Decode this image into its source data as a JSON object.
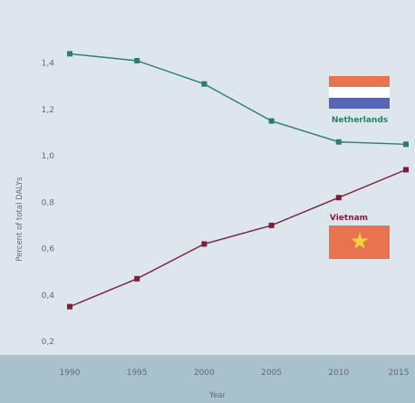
{
  "chart_data": {
    "type": "line",
    "title": "",
    "xlabel": "Year",
    "ylabel": "Percent of total DALYs",
    "x": [
      1990,
      1995,
      2000,
      2005,
      2010,
      2015
    ],
    "ylim": [
      0.2,
      1.5
    ],
    "yticks": [
      "0,2",
      "0,4",
      "0,6",
      "0,8",
      "1,0",
      "1,2",
      "1,4"
    ],
    "xticks": [
      "1990",
      "1995",
      "2000",
      "2005",
      "2010",
      "2015"
    ],
    "grid": false,
    "series": [
      {
        "name": "Netherlands",
        "values": [
          1.44,
          1.41,
          1.31,
          1.15,
          1.06,
          1.05
        ],
        "color": "#2e7d6b"
      },
      {
        "name": "Vietnam",
        "values": [
          0.35,
          0.47,
          0.62,
          0.7,
          0.82,
          0.94
        ],
        "color": "#7a1f3d"
      }
    ],
    "colors": {
      "plot_background": "#dce6ec",
      "axis_band": "#a9c1cd",
      "flag_nl_red": "#e8734f",
      "flag_nl_white": "#ffffff",
      "flag_nl_blue": "#5a64b4",
      "flag_vn_red": "#e8734f",
      "flag_vn_star": "#f5d23c"
    }
  }
}
